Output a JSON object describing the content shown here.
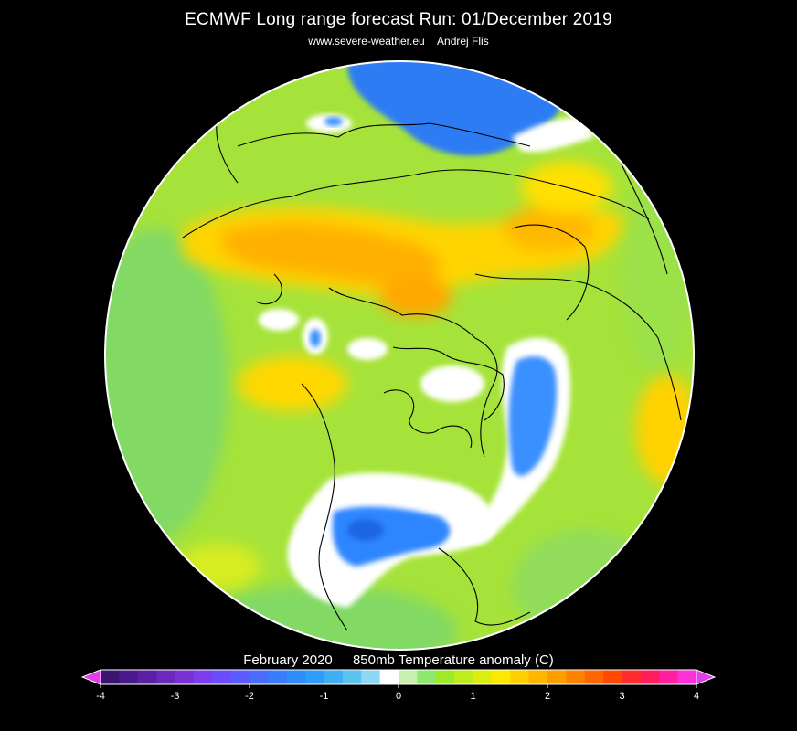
{
  "header": {
    "title": "ECMWF Long range forecast  Run: 01/December 2019",
    "source": "www.severe-weather.eu",
    "author": "Andrej Flis"
  },
  "map": {
    "projection": "polar-stereographic-north",
    "background_color": "#000000",
    "coastline_color": "#000000",
    "anomaly_regions": [
      {
        "name": "north-america-cold-core",
        "anomaly": -1.5,
        "color": "#2f86ff"
      },
      {
        "name": "north-america-cold-rim",
        "anomaly": 0,
        "color": "#ffffff"
      },
      {
        "name": "greenland-cold-core",
        "anomaly": -1.2,
        "color": "#3a90ff"
      },
      {
        "name": "greenland-cold-rim",
        "anomaly": 0,
        "color": "#ffffff"
      },
      {
        "name": "east-asia-cold-core",
        "anomaly": -1.6,
        "color": "#2d7cf4"
      },
      {
        "name": "eurasia-warm-belt",
        "anomaly": 1.8,
        "color": "#ffb000"
      },
      {
        "name": "europe-warm",
        "anomaly": 1.5,
        "color": "#ffd700"
      },
      {
        "name": "atlantic-mild",
        "anomaly": 1.0,
        "color": "#c8ee24"
      }
    ]
  },
  "legend": {
    "period": "February 2020",
    "title": "850mb Temperature anomaly (C)",
    "ticks": [
      "-4",
      "-3",
      "-2",
      "-1",
      "0",
      "1",
      "2",
      "3",
      "4"
    ],
    "colors": [
      "#3b1470",
      "#4a1a8a",
      "#5a20a3",
      "#6a28bc",
      "#7a30d4",
      "#7c3cf0",
      "#6c4cff",
      "#5a5cff",
      "#4a6cff",
      "#3a7cff",
      "#2f8cff",
      "#2e9cfa",
      "#40aef5",
      "#5cc2f0",
      "#8cd8f5",
      "#ffffff",
      "#c7f0b0",
      "#8de86e",
      "#9cea2a",
      "#bdee1c",
      "#dcee10",
      "#ffe800",
      "#ffd000",
      "#ffb600",
      "#ff9c00",
      "#ff8200",
      "#ff6600",
      "#ff4800",
      "#ff2c2c",
      "#ff1c5c",
      "#ff20a0",
      "#ff30d8"
    ],
    "arrow_color": "#e040e8"
  }
}
